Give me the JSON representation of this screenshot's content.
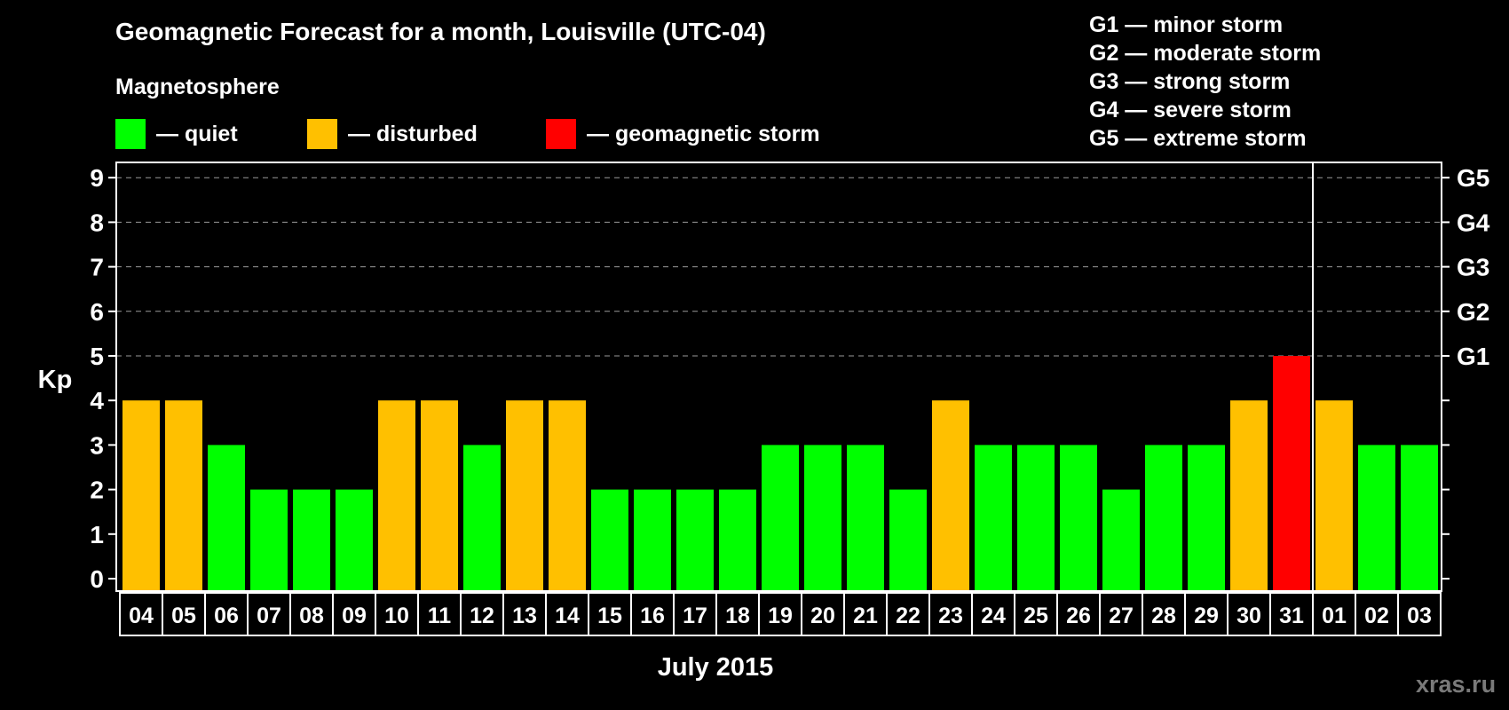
{
  "header": {
    "title": "Geomagnetic Forecast for a month, Louisville (UTC-04)",
    "section": "Magnetosphere"
  },
  "legend": [
    {
      "label": "— quiet",
      "color": "#00ff00"
    },
    {
      "label": "— disturbed",
      "color": "#ffc000"
    },
    {
      "label": "— geomagnetic storm",
      "color": "#ff0000"
    }
  ],
  "g_scale": [
    "G1 — minor storm",
    "G2 — moderate storm",
    "G3 — strong storm",
    "G4 — severe storm",
    "G5 — extreme storm"
  ],
  "footer": {
    "month": "July 2015",
    "watermark": "xras.ru"
  },
  "chart_data": {
    "type": "bar",
    "title": "Geomagnetic Forecast for a month, Louisville (UTC-04)",
    "xlabel": "July 2015",
    "ylabel": "Kp",
    "ylim": [
      0,
      9
    ],
    "yticks": [
      0,
      1,
      2,
      3,
      4,
      5,
      6,
      7,
      8,
      9
    ],
    "right_axis_labels": [
      {
        "y": 5,
        "label": "G1"
      },
      {
        "y": 6,
        "label": "G2"
      },
      {
        "y": 7,
        "label": "G3"
      },
      {
        "y": 8,
        "label": "G4"
      },
      {
        "y": 9,
        "label": "G5"
      }
    ],
    "grid": "dashed horizontal at 5–9",
    "month_divider_after": "31",
    "categories": [
      "04",
      "05",
      "06",
      "07",
      "08",
      "09",
      "10",
      "11",
      "12",
      "13",
      "14",
      "15",
      "16",
      "17",
      "18",
      "19",
      "20",
      "21",
      "22",
      "23",
      "24",
      "25",
      "26",
      "27",
      "28",
      "29",
      "30",
      "31",
      "01",
      "02",
      "03"
    ],
    "values": [
      4,
      4,
      3,
      2,
      2,
      2,
      4,
      4,
      3,
      4,
      4,
      2,
      2,
      2,
      2,
      3,
      3,
      3,
      2,
      4,
      3,
      3,
      3,
      2,
      3,
      3,
      4,
      5,
      4,
      3,
      3
    ],
    "status": [
      "disturbed",
      "disturbed",
      "quiet",
      "quiet",
      "quiet",
      "quiet",
      "disturbed",
      "disturbed",
      "quiet",
      "disturbed",
      "disturbed",
      "quiet",
      "quiet",
      "quiet",
      "quiet",
      "quiet",
      "quiet",
      "quiet",
      "quiet",
      "disturbed",
      "quiet",
      "quiet",
      "quiet",
      "quiet",
      "quiet",
      "quiet",
      "disturbed",
      "storm",
      "disturbed",
      "quiet",
      "quiet"
    ],
    "colors": {
      "quiet": "#00ff00",
      "disturbed": "#ffc000",
      "storm": "#ff0000"
    }
  }
}
